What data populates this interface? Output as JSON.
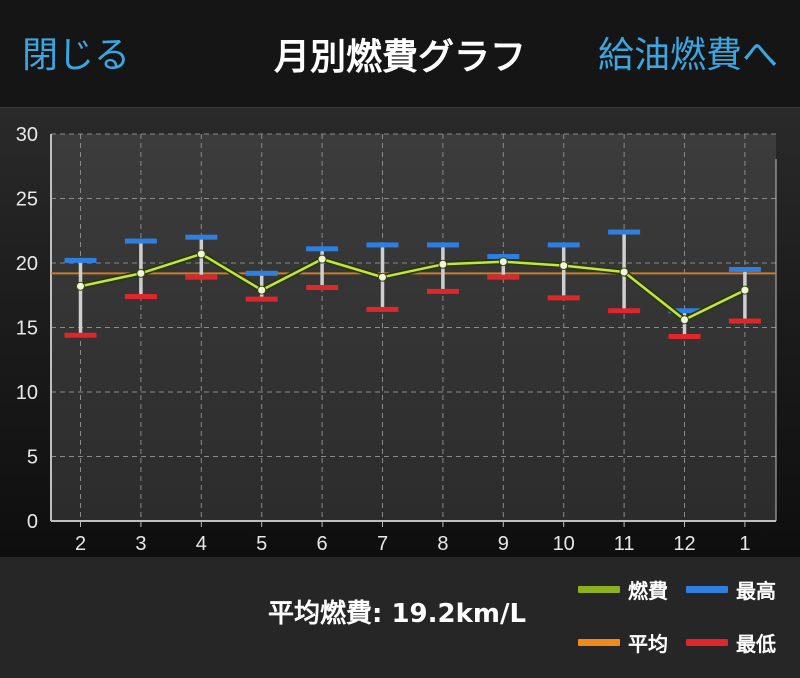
{
  "nav": {
    "close_label": "閉じる",
    "title": "月別燃費グラフ",
    "next_label": "給油燃費へ"
  },
  "footer": {
    "average_text": "平均燃費: 19.2km/L",
    "legend": [
      {
        "label": "燃費",
        "color": "#8cb11e"
      },
      {
        "label": "最高",
        "color": "#2e7fe0"
      },
      {
        "label": "平均",
        "color": "#f08a1c"
      },
      {
        "label": "最低",
        "color": "#e0262a"
      }
    ]
  },
  "chart_data": {
    "type": "line",
    "categories": [
      "2",
      "3",
      "4",
      "5",
      "6",
      "7",
      "8",
      "9",
      "10",
      "11",
      "12",
      "1"
    ],
    "ylim": [
      0,
      30
    ],
    "yticks": [
      "0",
      "5",
      "10",
      "15",
      "20",
      "25",
      "30"
    ],
    "grid": true,
    "average": 19.2,
    "series": [
      {
        "name": "燃費",
        "color": "#c9e04a",
        "values": [
          18.2,
          19.2,
          20.7,
          17.9,
          20.3,
          18.9,
          19.9,
          20.1,
          19.8,
          19.3,
          15.6,
          17.9
        ]
      },
      {
        "name": "最高",
        "color": "#2e7fe0",
        "values": [
          20.2,
          21.7,
          22.0,
          19.2,
          21.1,
          21.4,
          21.4,
          20.5,
          21.4,
          22.4,
          16.3,
          19.5
        ]
      },
      {
        "name": "最低",
        "color": "#e0262a",
        "values": [
          14.4,
          17.4,
          18.9,
          17.2,
          18.1,
          16.4,
          17.8,
          18.9,
          17.3,
          16.3,
          14.3,
          15.5
        ]
      }
    ],
    "average_color": "#c97b2a"
  }
}
